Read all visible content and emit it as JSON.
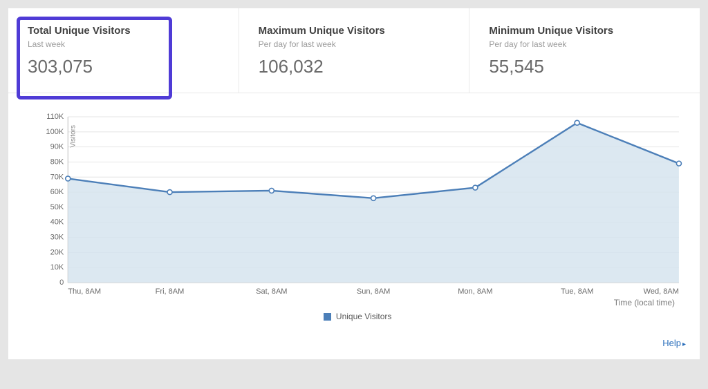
{
  "stats": [
    {
      "title": "Total Unique Visitors",
      "subtitle": "Last week",
      "value": "303,075",
      "highlighted": true
    },
    {
      "title": "Maximum Unique Visitors",
      "subtitle": "Per day for last week",
      "value": "106,032",
      "highlighted": false
    },
    {
      "title": "Minimum Unique Visitors",
      "subtitle": "Per day for last week",
      "value": "55,545",
      "highlighted": false
    }
  ],
  "highlight_color": "#4f3bd6",
  "chart": {
    "type": "area",
    "series_name": "Unique Visitors",
    "x_labels": [
      "Thu, 8AM",
      "Fri, 8AM",
      "Sat, 8AM",
      "Sun, 8AM",
      "Mon, 8AM",
      "Tue, 8AM",
      "Wed, 8AM"
    ],
    "y_values": [
      69000,
      60000,
      61000,
      56000,
      63000,
      106000,
      79000
    ],
    "ylim": [
      0,
      110000
    ],
    "ytick_step": 10000,
    "ytick_labels": [
      "0",
      "10K",
      "20K",
      "30K",
      "40K",
      "50K",
      "60K",
      "70K",
      "80K",
      "90K",
      "100K",
      "110K"
    ],
    "y_axis_title": "Visitors",
    "x_axis_note": "Time (local time)",
    "line_color": "#4c7fb8",
    "line_width": 2.4,
    "marker_fill": "#ffffff",
    "marker_stroke": "#4c7fb8",
    "marker_radius": 3.5,
    "area_fill": "#d6e4ef",
    "area_opacity": 0.85,
    "grid_color": "#e4e4e4",
    "axis_color": "#bfbfbf",
    "background_color": "#ffffff",
    "legend_swatch_color": "#4c7fb8"
  },
  "footer": {
    "help_label": "Help"
  }
}
